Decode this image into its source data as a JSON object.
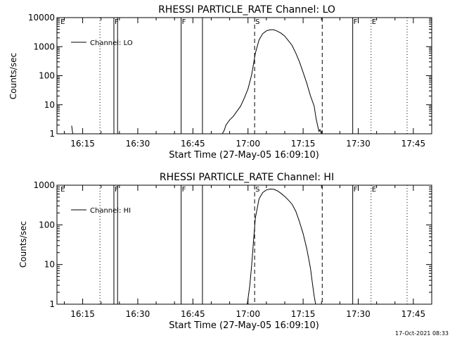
{
  "chart_data": [
    {
      "type": "line",
      "title": "RHESSI PARTICLE_RATE Channel: LO",
      "xlabel": "Start Time (27-May-05 16:09:10)",
      "ylabel": "Counts/sec",
      "yscale": "log",
      "ylim": [
        1,
        10000
      ],
      "xlim": [
        "16:08",
        "17:50"
      ],
      "x_ticks": [
        "16:15",
        "16:30",
        "16:45",
        "17:00",
        "17:15",
        "17:30",
        "17:45"
      ],
      "y_ticks": [
        "1",
        "10",
        "100",
        "1000",
        "10000"
      ],
      "legend": {
        "position": "top-left",
        "entries": [
          "Channel: LO"
        ]
      },
      "series": [
        {
          "name": "Channel: LO",
          "color": "#000000",
          "segments": [
            {
              "x": [
                "16:12.0",
                "16:12.3"
              ],
              "y": [
                1.9,
                1.0
              ]
            },
            {
              "x": [
                "16:53.0",
                "16:53.5",
                "16:54",
                "16:55",
                "16:56",
                "16:57",
                "16:58",
                "16:59",
                "17:00",
                "17:01",
                "17:02",
                "17:03",
                "17:04",
                "17:05",
                "17:06",
                "17:07",
                "17:08",
                "17:09",
                "17:10",
                "17:11",
                "17:12",
                "17:13",
                "17:14",
                "17:15",
                "17:16",
                "17:17",
                "17:18",
                "17:18.5",
                "17:19",
                "17:19.3",
                "17:19.6",
                "17:20"
              ],
              "y": [
                1.0,
                1.3,
                2.0,
                3.0,
                4.0,
                6.0,
                9.0,
                17,
                35,
                110,
                600,
                1700,
                2800,
                3500,
                3800,
                3800,
                3400,
                2900,
                2300,
                1600,
                1100,
                600,
                300,
                130,
                55,
                20,
                9,
                3.5,
                1.8,
                1.2,
                1.4,
                1.0
              ]
            }
          ]
        }
      ],
      "markers": {
        "solid": [
          "16:23.5",
          "16:24.5",
          "16:41.8",
          "16:47.6",
          "17:28.5"
        ],
        "dotted": [
          "16:19.7",
          "17:33.5",
          "17:43.3"
        ],
        "dashed": [
          "17:01.8",
          "17:20.2"
        ]
      },
      "flags": [
        {
          "label": "E",
          "at": "16:08.8"
        },
        {
          "label": "F",
          "at": "16:23.5"
        },
        {
          "label": "F",
          "at": "16:41.8"
        },
        {
          "label": "S",
          "at": "17:01.8"
        },
        {
          "label": "F",
          "at": "17:28.5"
        },
        {
          "label": "E",
          "at": "17:33.5"
        }
      ]
    },
    {
      "type": "line",
      "title": "RHESSI PARTICLE_RATE Channel: HI",
      "xlabel": "Start Time (27-May-05 16:09:10)",
      "ylabel": "Counts/sec",
      "yscale": "log",
      "ylim": [
        1,
        1000
      ],
      "xlim": [
        "16:08",
        "17:50"
      ],
      "x_ticks": [
        "16:15",
        "16:30",
        "16:45",
        "17:00",
        "17:15",
        "17:30",
        "17:45"
      ],
      "y_ticks": [
        "1",
        "10",
        "100",
        "1000"
      ],
      "legend": {
        "position": "top-left",
        "entries": [
          "Channel: HI"
        ]
      },
      "series": [
        {
          "name": "Channel: HI",
          "color": "#000000",
          "segments": [
            {
              "x": [
                "16:59.8",
                "17:00.5",
                "17:01",
                "17:01.5",
                "17:02",
                "17:03",
                "17:04",
                "17:05",
                "17:06",
                "17:07",
                "17:08",
                "17:09",
                "17:10",
                "17:11",
                "17:12",
                "17:13",
                "17:14",
                "17:15",
                "17:16",
                "17:17",
                "17:17.5",
                "17:18",
                "17:18.4"
              ],
              "y": [
                1.0,
                3.0,
                10,
                40,
                150,
                450,
                650,
                760,
                800,
                790,
                720,
                620,
                520,
                420,
                330,
                220,
                120,
                60,
                25,
                8,
                3.5,
                1.6,
                1.0
              ]
            }
          ]
        }
      ],
      "markers": {
        "solid": [
          "16:23.5",
          "16:24.5",
          "16:41.8",
          "16:47.6",
          "17:28.5"
        ],
        "dotted": [
          "16:19.7",
          "17:33.5",
          "17:43.3"
        ],
        "dashed": [
          "17:01.8",
          "17:20.2"
        ]
      },
      "flags": [
        {
          "label": "E",
          "at": "16:08.8"
        },
        {
          "label": "F",
          "at": "16:23.5"
        },
        {
          "label": "F",
          "at": "16:41.8"
        },
        {
          "label": "S",
          "at": "17:01.8"
        },
        {
          "label": "F",
          "at": "17:28.5"
        },
        {
          "label": "E",
          "at": "17:33.5"
        }
      ]
    }
  ],
  "footer": {
    "timestamp": "17-Oct-2021 08:33"
  }
}
